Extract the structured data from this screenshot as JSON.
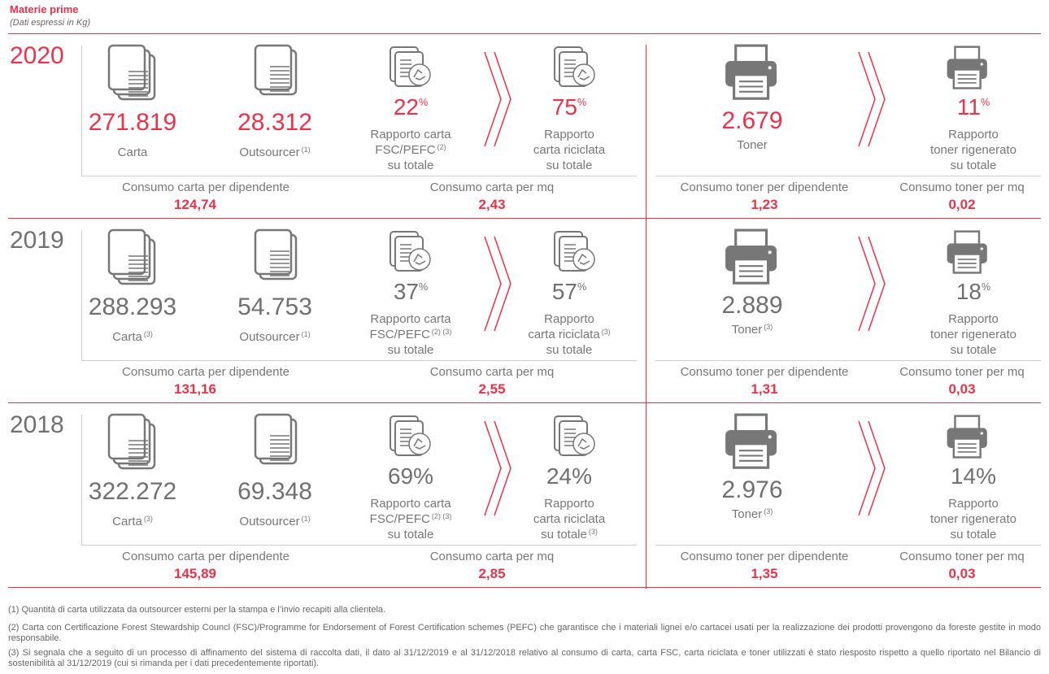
{
  "header": {
    "title": "Materie prime",
    "subtitle": "(Dati espressi in Kg)"
  },
  "accent": "#e8334a",
  "years": [
    {
      "year": "2020",
      "color": "#e8334a",
      "carta": {
        "value": "271.819",
        "lines": [
          {
            "text": "Carta"
          }
        ]
      },
      "outsourcer": {
        "value": "28.312",
        "lines": [
          {
            "text": "Outsourcer",
            "note": "(1)"
          }
        ]
      },
      "fsc": {
        "value": "22",
        "unit": "%",
        "lines": [
          {
            "text": "Rapporto carta"
          },
          {
            "text": "FSC/PEFC",
            "note": "(2)"
          },
          {
            "text": "su totale"
          }
        ]
      },
      "riciclata": {
        "value": "75",
        "unit": "%",
        "lines": [
          {
            "text": "Rapporto"
          },
          {
            "text": "carta riciclata"
          },
          {
            "text": "su totale"
          }
        ]
      },
      "toner": {
        "value": "2.679",
        "lines": [
          {
            "text": "Toner"
          }
        ]
      },
      "rigenerato": {
        "value": "11",
        "unit": "%",
        "lines": [
          {
            "text": "Rapporto"
          },
          {
            "text": "toner rigenerato"
          },
          {
            "text": "su totale"
          }
        ]
      },
      "stats": [
        {
          "label": "Consumo carta per dipendente",
          "value": "124,74"
        },
        {
          "label": "Consumo carta per mq",
          "value": "2,43"
        },
        {
          "label": "Consumo toner per dipendente",
          "value": "1,23"
        },
        {
          "label": "Consumo toner per mq",
          "value": "0,02"
        }
      ]
    },
    {
      "year": "2019",
      "color": "#707070",
      "carta": {
        "value": "288.293",
        "lines": [
          {
            "text": "Carta",
            "note": "(3)"
          }
        ]
      },
      "outsourcer": {
        "value": "54.753",
        "lines": [
          {
            "text": "Outsourcer",
            "note": "(1)"
          }
        ]
      },
      "fsc": {
        "value": "37",
        "unit": "%",
        "lines": [
          {
            "text": "Rapporto carta"
          },
          {
            "text": "FSC/PEFC",
            "note": "(2) (3)"
          },
          {
            "text": "su totale"
          }
        ]
      },
      "riciclata": {
        "value": "57",
        "unit": "%",
        "lines": [
          {
            "text": "Rapporto"
          },
          {
            "text": "carta riciclata",
            "note": "(3)"
          },
          {
            "text": "su totale"
          }
        ]
      },
      "toner": {
        "value": "2.889",
        "lines": [
          {
            "text": "Toner",
            "note": "(3)"
          }
        ]
      },
      "rigenerato": {
        "value": "18",
        "unit": "%",
        "lines": [
          {
            "text": "Rapporto"
          },
          {
            "text": "toner rigenerato"
          },
          {
            "text": "su totale"
          }
        ]
      },
      "stats": [
        {
          "label": "Consumo carta per dipendente",
          "value": "131,16"
        },
        {
          "label": "Consumo carta per mq",
          "value": "2,55"
        },
        {
          "label": "Consumo toner per dipendente",
          "value": "1,31"
        },
        {
          "label": "Consumo toner per mq",
          "value": "0,03"
        }
      ]
    },
    {
      "year": "2018",
      "color": "#707070",
      "carta": {
        "value": "322.272",
        "lines": [
          {
            "text": "Carta",
            "note": "(3)"
          }
        ]
      },
      "outsourcer": {
        "value": "69.348",
        "lines": [
          {
            "text": "Outsourcer",
            "note": "(1)"
          }
        ]
      },
      "fsc": {
        "value": "69%",
        "lines": [
          {
            "text": "Rapporto carta"
          },
          {
            "text": "FSC/PEFC",
            "note": "(2) (3)"
          },
          {
            "text": "su totale"
          }
        ]
      },
      "riciclata": {
        "value": "24%",
        "lines": [
          {
            "text": "Rapporto"
          },
          {
            "text": "carta riciclata"
          },
          {
            "text": "su totale",
            "note": "(3)"
          }
        ]
      },
      "toner": {
        "value": "2.976",
        "lines": [
          {
            "text": "Toner",
            "note": "(3)"
          }
        ]
      },
      "rigenerato": {
        "value": "14%",
        "lines": [
          {
            "text": "Rapporto"
          },
          {
            "text": "toner rigenerato"
          },
          {
            "text": "su totale"
          }
        ]
      },
      "stats": [
        {
          "label": "Consumo carta per dipendente",
          "value": "145,89"
        },
        {
          "label": "Consumo carta per mq",
          "value": "2,85"
        },
        {
          "label": "Consumo toner per dipendente",
          "value": "1,35"
        },
        {
          "label": "Consumo toner per mq",
          "value": "0,03"
        }
      ]
    }
  ],
  "footnotes": [
    "(1) Quantità di carta utilizzata da outsourcer esterni per la stampa e l’invio recapiti alla clientela.",
    "(2) Carta con Certificazione Forest Stewardship Councl (FSC)/Programme for Endorsement of Forest Certification schemes (PEFC) che garantisce che i materiali lignei e/o cartacei usati per la realizzazione dei prodotti provengono da foreste gestite in modo responsabile.",
    "(3) Si segnala che a seguito di un processo di affinamento del sistema di raccolta dati, il dato al 31/12/2019 e al 31/12/2018 relativo al consumo di carta, carta FSC, carta riciclata e toner utilizzati è stato riesposto rispetto a quello riportato nel Bilancio di sostenibilità al 31/12/2019 (cui si rimanda per i dati precedentemente riportati)."
  ]
}
